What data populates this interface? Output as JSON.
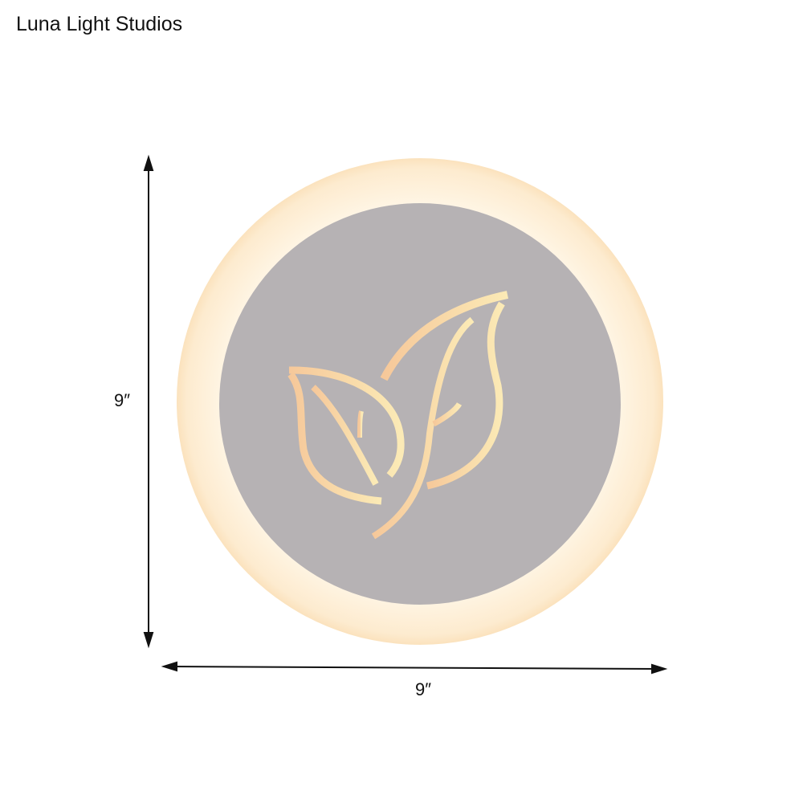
{
  "brand": "Luna Light Studios",
  "dimensions": {
    "height_label": "9″",
    "width_label": "9″"
  },
  "product": {
    "motif": "leaf-icon",
    "colors": {
      "ring": "#fdf1de",
      "panel": "#b6b2b4",
      "light": "#fbe2b0"
    }
  }
}
